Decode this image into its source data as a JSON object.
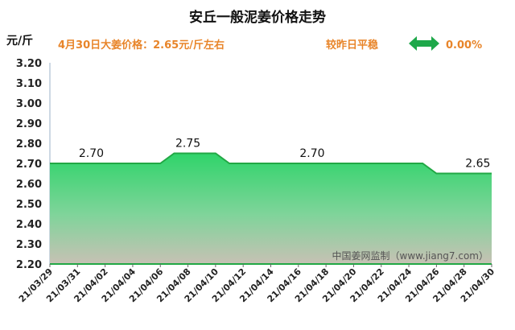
{
  "chart_data": {
    "type": "area",
    "title": "安丘一般泥姜价格走势",
    "ylabel": "元/斤",
    "subtitle": "4月30日大姜价格：2.65元/斤左右",
    "trend_label": "较昨日平稳",
    "change_pct": "0.00%",
    "watermark": "中国姜网监制（www.jiang7.com）",
    "ylim": [
      2.2,
      3.2
    ],
    "yticks": [
      "3.20",
      "3.10",
      "3.00",
      "2.90",
      "2.80",
      "2.70",
      "2.60",
      "2.50",
      "2.40",
      "2.30",
      "2.20"
    ],
    "x_ticks": [
      "21/03/29",
      "21/03/31",
      "21/04/02",
      "21/04/04",
      "21/04/06",
      "21/04/08",
      "21/04/10",
      "21/04/12",
      "21/04/14",
      "21/04/16",
      "21/04/18",
      "21/04/20",
      "21/04/22",
      "21/04/24",
      "21/04/26",
      "21/04/28",
      "21/04/30"
    ],
    "x": [
      "21/03/29",
      "21/03/30",
      "21/03/31",
      "21/04/01",
      "21/04/02",
      "21/04/03",
      "21/04/04",
      "21/04/05",
      "21/04/06",
      "21/04/07",
      "21/04/08",
      "21/04/09",
      "21/04/10",
      "21/04/11",
      "21/04/12",
      "21/04/13",
      "21/04/14",
      "21/04/15",
      "21/04/16",
      "21/04/17",
      "21/04/18",
      "21/04/19",
      "21/04/20",
      "21/04/21",
      "21/04/22",
      "21/04/23",
      "21/04/24",
      "21/04/25",
      "21/04/26",
      "21/04/27",
      "21/04/28",
      "21/04/29",
      "21/04/30"
    ],
    "values": [
      2.7,
      2.7,
      2.7,
      2.7,
      2.7,
      2.7,
      2.7,
      2.7,
      2.7,
      2.75,
      2.75,
      2.75,
      2.75,
      2.7,
      2.7,
      2.7,
      2.7,
      2.7,
      2.7,
      2.7,
      2.7,
      2.7,
      2.7,
      2.7,
      2.7,
      2.7,
      2.7,
      2.7,
      2.65,
      2.65,
      2.65,
      2.65,
      2.65
    ],
    "data_labels": [
      {
        "x": "21/04/01",
        "text": "2.70"
      },
      {
        "x": "21/04/08",
        "text": "2.75"
      },
      {
        "x": "21/04/17",
        "text": "2.70"
      },
      {
        "x": "21/04/29",
        "text": "2.65"
      }
    ],
    "colors": {
      "line": "#22a845",
      "fill_top": "#2fd46a",
      "fill_bottom": "#c7c1b4",
      "title": "#111111",
      "accent": "#e8852a",
      "arrow": "#1ea84a"
    }
  }
}
